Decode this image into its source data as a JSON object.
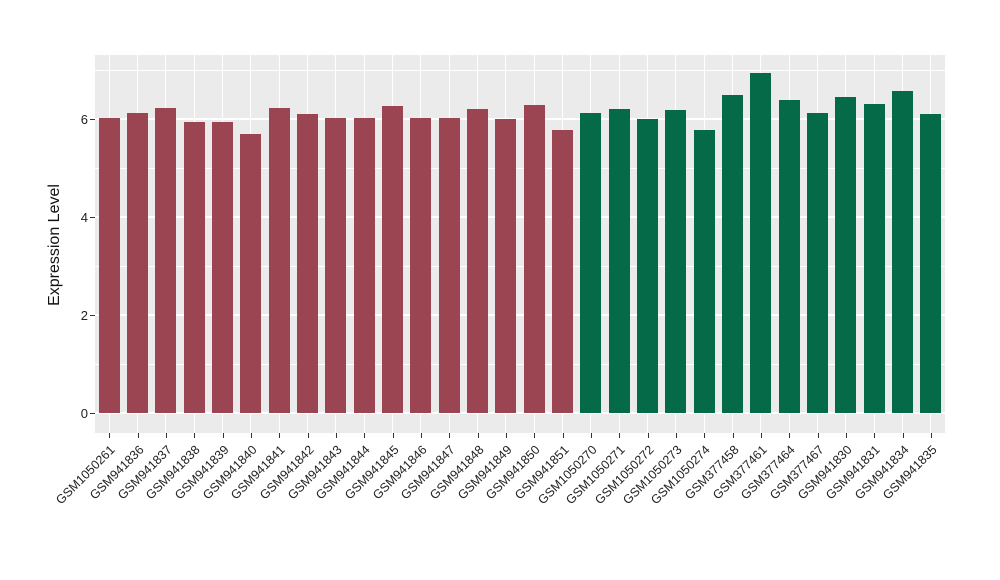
{
  "chart_data": {
    "type": "bar",
    "title": "",
    "xlabel": "",
    "ylabel": "Expression Level",
    "ylim": [
      0,
      7.3
    ],
    "yticks": [
      0,
      2,
      4,
      6
    ],
    "yticks_minor": [
      1,
      3,
      5,
      7
    ],
    "grid": "on",
    "legend_position": "none",
    "panel_bg": "#EBEBEB",
    "grid_color": "#FFFFFF",
    "tick_color": "#333333",
    "groups": [
      {
        "name": "group-1",
        "color": "#9A4551"
      },
      {
        "name": "group-2",
        "color": "#056A47"
      }
    ],
    "categories": [
      "GSM1050261",
      "GSM941836",
      "GSM941837",
      "GSM941838",
      "GSM941839",
      "GSM941840",
      "GSM941841",
      "GSM941842",
      "GSM941843",
      "GSM941844",
      "GSM941845",
      "GSM941846",
      "GSM941847",
      "GSM941848",
      "GSM941849",
      "GSM941850",
      "GSM941851",
      "GSM1050270",
      "GSM1050271",
      "GSM1050272",
      "GSM1050273",
      "GSM1050274",
      "GSM377458",
      "GSM377461",
      "GSM377464",
      "GSM377467",
      "GSM941830",
      "GSM941831",
      "GSM941834",
      "GSM941835"
    ],
    "values": [
      6.02,
      6.13,
      6.23,
      5.94,
      5.93,
      5.7,
      6.22,
      6.1,
      6.03,
      6.02,
      6.26,
      6.03,
      6.02,
      6.21,
      6.0,
      6.29,
      5.78,
      6.12,
      6.2,
      6.01,
      6.18,
      5.78,
      6.48,
      6.93,
      6.38,
      6.13,
      6.44,
      6.31,
      6.57,
      6.11
    ],
    "group_index": [
      0,
      0,
      0,
      0,
      0,
      0,
      0,
      0,
      0,
      0,
      0,
      0,
      0,
      0,
      0,
      0,
      0,
      1,
      1,
      1,
      1,
      1,
      1,
      1,
      1,
      1,
      1,
      1,
      1,
      1
    ]
  }
}
